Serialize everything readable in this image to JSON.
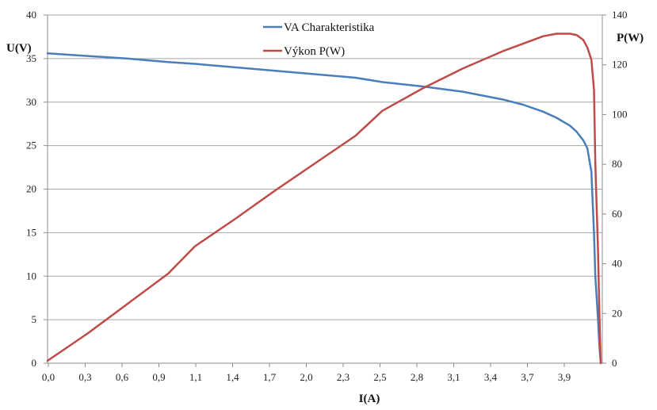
{
  "chart_data": {
    "type": "line",
    "xlabel": "I(A)",
    "ylabel_left": "U(V)",
    "ylabel_right": "P(W)",
    "x_tick_labels": [
      "0,0",
      "0,3",
      "0,6",
      "0,9",
      "1,1",
      "1,4",
      "1,7",
      "2,0",
      "2,3",
      "2,5",
      "2,8",
      "3,1",
      "3,4",
      "3,7",
      "3,9"
    ],
    "y_left_ticks": [
      0,
      5,
      10,
      15,
      20,
      25,
      30,
      35,
      40
    ],
    "y_right_ticks": [
      0,
      20,
      40,
      60,
      80,
      100,
      120,
      140
    ],
    "ylim_left": [
      0,
      40
    ],
    "ylim_right": [
      0,
      140
    ],
    "grid": true,
    "legend_position": "top-center",
    "series": [
      {
        "name": "VA Charakteristika",
        "axis": "left",
        "color": "#4a7ebb",
        "x": [
          0.0,
          0.3,
          0.6,
          0.9,
          1.1,
          1.4,
          1.7,
          2.0,
          2.3,
          2.5,
          2.8,
          3.1,
          3.4,
          3.55,
          3.7,
          3.8,
          3.9,
          3.95,
          4.0,
          4.03,
          4.06,
          4.08,
          4.09,
          4.11,
          4.12,
          4.13
        ],
        "y": [
          35.6,
          35.3,
          35.0,
          34.6,
          34.4,
          34.0,
          33.6,
          33.2,
          32.8,
          32.3,
          31.8,
          31.2,
          30.3,
          29.7,
          28.9,
          28.2,
          27.3,
          26.6,
          25.6,
          24.7,
          22.0,
          15.0,
          10.0,
          5.0,
          2.0,
          0.0
        ]
      },
      {
        "name": "Výkon P(W)",
        "axis": "right",
        "color": "#be4b48",
        "x": [
          0.0,
          0.3,
          0.6,
          0.9,
          1.1,
          1.4,
          1.7,
          2.0,
          2.3,
          2.5,
          2.8,
          3.1,
          3.4,
          3.55,
          3.7,
          3.8,
          3.9,
          3.95,
          4.0,
          4.03,
          4.06,
          4.08,
          4.09,
          4.11,
          4.12,
          4.13
        ],
        "y": [
          1.0,
          12.0,
          24.0,
          36.0,
          47.0,
          58.0,
          69.5,
          80.5,
          91.5,
          101.5,
          110.5,
          118.5,
          125.5,
          128.5,
          131.5,
          132.5,
          132.5,
          132.0,
          130.0,
          127.0,
          122.0,
          110.0,
          80.0,
          45.0,
          20.0,
          0.0
        ]
      }
    ]
  }
}
